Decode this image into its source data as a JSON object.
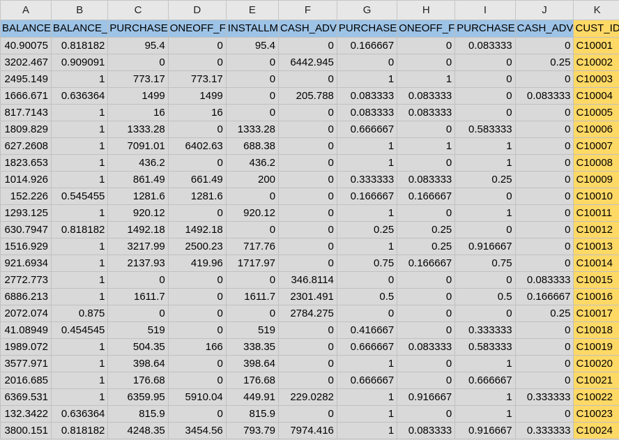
{
  "columns": [
    {
      "letter": "A",
      "header": "BALANCE"
    },
    {
      "letter": "B",
      "header": "BALANCE_"
    },
    {
      "letter": "C",
      "header": "PURCHASE"
    },
    {
      "letter": "D",
      "header": "ONEOFF_F"
    },
    {
      "letter": "E",
      "header": "INSTALLM"
    },
    {
      "letter": "F",
      "header": "CASH_ADV"
    },
    {
      "letter": "G",
      "header": "PURCHASE"
    },
    {
      "letter": "H",
      "header": "ONEOFF_F"
    },
    {
      "letter": "I",
      "header": "PURCHASE"
    },
    {
      "letter": "J",
      "header": "CASH_ADV"
    },
    {
      "letter": "K",
      "header": "CUST_ID"
    }
  ],
  "rows": [
    [
      "40.90075",
      "0.818182",
      "95.4",
      "0",
      "95.4",
      "0",
      "0.166667",
      "0",
      "0.083333",
      "0",
      "C10001"
    ],
    [
      "3202.467",
      "0.909091",
      "0",
      "0",
      "0",
      "6442.945",
      "0",
      "0",
      "0",
      "0.25",
      "C10002"
    ],
    [
      "2495.149",
      "1",
      "773.17",
      "773.17",
      "0",
      "0",
      "1",
      "1",
      "0",
      "0",
      "C10003"
    ],
    [
      "1666.671",
      "0.636364",
      "1499",
      "1499",
      "0",
      "205.788",
      "0.083333",
      "0.083333",
      "0",
      "0.083333",
      "C10004"
    ],
    [
      "817.7143",
      "1",
      "16",
      "16",
      "0",
      "0",
      "0.083333",
      "0.083333",
      "0",
      "0",
      "C10005"
    ],
    [
      "1809.829",
      "1",
      "1333.28",
      "0",
      "1333.28",
      "0",
      "0.666667",
      "0",
      "0.583333",
      "0",
      "C10006"
    ],
    [
      "627.2608",
      "1",
      "7091.01",
      "6402.63",
      "688.38",
      "0",
      "1",
      "1",
      "1",
      "0",
      "C10007"
    ],
    [
      "1823.653",
      "1",
      "436.2",
      "0",
      "436.2",
      "0",
      "1",
      "0",
      "1",
      "0",
      "C10008"
    ],
    [
      "1014.926",
      "1",
      "861.49",
      "661.49",
      "200",
      "0",
      "0.333333",
      "0.083333",
      "0.25",
      "0",
      "C10009"
    ],
    [
      "152.226",
      "0.545455",
      "1281.6",
      "1281.6",
      "0",
      "0",
      "0.166667",
      "0.166667",
      "0",
      "0",
      "C10010"
    ],
    [
      "1293.125",
      "1",
      "920.12",
      "0",
      "920.12",
      "0",
      "1",
      "0",
      "1",
      "0",
      "C10011"
    ],
    [
      "630.7947",
      "0.818182",
      "1492.18",
      "1492.18",
      "0",
      "0",
      "0.25",
      "0.25",
      "0",
      "0",
      "C10012"
    ],
    [
      "1516.929",
      "1",
      "3217.99",
      "2500.23",
      "717.76",
      "0",
      "1",
      "0.25",
      "0.916667",
      "0",
      "C10013"
    ],
    [
      "921.6934",
      "1",
      "2137.93",
      "419.96",
      "1717.97",
      "0",
      "0.75",
      "0.166667",
      "0.75",
      "0",
      "C10014"
    ],
    [
      "2772.773",
      "1",
      "0",
      "0",
      "0",
      "346.8114",
      "0",
      "0",
      "0",
      "0.083333",
      "C10015"
    ],
    [
      "6886.213",
      "1",
      "1611.7",
      "0",
      "1611.7",
      "2301.491",
      "0.5",
      "0",
      "0.5",
      "0.166667",
      "C10016"
    ],
    [
      "2072.074",
      "0.875",
      "0",
      "0",
      "0",
      "2784.275",
      "0",
      "0",
      "0",
      "0.25",
      "C10017"
    ],
    [
      "41.08949",
      "0.454545",
      "519",
      "0",
      "519",
      "0",
      "0.416667",
      "0",
      "0.333333",
      "0",
      "C10018"
    ],
    [
      "1989.072",
      "1",
      "504.35",
      "166",
      "338.35",
      "0",
      "0.666667",
      "0.083333",
      "0.583333",
      "0",
      "C10019"
    ],
    [
      "3577.971",
      "1",
      "398.64",
      "0",
      "398.64",
      "0",
      "1",
      "0",
      "1",
      "0",
      "C10020"
    ],
    [
      "2016.685",
      "1",
      "176.68",
      "0",
      "176.68",
      "0",
      "0.666667",
      "0",
      "0.666667",
      "0",
      "C10021"
    ],
    [
      "6369.531",
      "1",
      "6359.95",
      "5910.04",
      "449.91",
      "229.0282",
      "1",
      "0.916667",
      "1",
      "0.333333",
      "C10022"
    ],
    [
      "132.3422",
      "0.636364",
      "815.9",
      "0",
      "815.9",
      "0",
      "1",
      "0",
      "1",
      "0",
      "C10023"
    ],
    [
      "3800.151",
      "0.818182",
      "4248.35",
      "3454.56",
      "793.79",
      "7974.416",
      "1",
      "0.083333",
      "0.916667",
      "0.333333",
      "C10024"
    ]
  ],
  "colors": {
    "header_fill": "#9dc3e6",
    "highlight_column_fill": "#ffd966",
    "cell_fill": "#d9d9d9"
  }
}
